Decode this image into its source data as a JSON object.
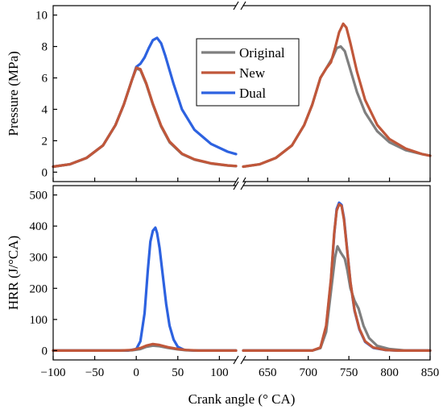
{
  "chart_data": {
    "type": "line",
    "xlabel": "Crank angle (° CA)",
    "x_break": {
      "left_range": [
        -100,
        120
      ],
      "right_range": [
        620,
        850
      ]
    },
    "x_ticks": [
      -100,
      -50,
      0,
      50,
      100,
      650,
      700,
      750,
      800,
      850
    ],
    "series_styles": [
      {
        "name": "Original",
        "color": "#7f7f7f"
      },
      {
        "name": "New",
        "color": "#c0573a"
      },
      {
        "name": "Dual",
        "color": "#2d62e0"
      }
    ],
    "panels": [
      {
        "ylabel": "Pressure (MPa)",
        "ylim": [
          -0.6,
          10.6
        ],
        "y_ticks": [
          0,
          2,
          4,
          6,
          8,
          10
        ],
        "legend": {
          "position": "top-center",
          "entries": [
            "Original",
            "New",
            "Dual"
          ]
        },
        "left": {
          "Original": [
            [
              -100,
              0.35
            ],
            [
              -80,
              0.5
            ],
            [
              -60,
              0.9
            ],
            [
              -40,
              1.7
            ],
            [
              -25,
              3.0
            ],
            [
              -15,
              4.3
            ],
            [
              -5,
              5.9
            ],
            [
              0,
              6.6
            ],
            [
              5,
              6.5
            ],
            [
              12,
              5.6
            ],
            [
              20,
              4.3
            ],
            [
              30,
              2.9
            ],
            [
              40,
              1.9
            ],
            [
              55,
              1.15
            ],
            [
              70,
              0.8
            ],
            [
              90,
              0.55
            ],
            [
              110,
              0.42
            ],
            [
              120,
              0.38
            ]
          ],
          "New": [
            [
              -100,
              0.35
            ],
            [
              -80,
              0.5
            ],
            [
              -60,
              0.9
            ],
            [
              -40,
              1.7
            ],
            [
              -25,
              3.0
            ],
            [
              -15,
              4.3
            ],
            [
              -5,
              5.9
            ],
            [
              0,
              6.65
            ],
            [
              5,
              6.55
            ],
            [
              12,
              5.65
            ],
            [
              20,
              4.35
            ],
            [
              30,
              2.95
            ],
            [
              40,
              1.95
            ],
            [
              55,
              1.18
            ],
            [
              70,
              0.82
            ],
            [
              90,
              0.56
            ],
            [
              110,
              0.43
            ],
            [
              120,
              0.39
            ]
          ],
          "Dual": [
            [
              -100,
              0.35
            ],
            [
              -80,
              0.5
            ],
            [
              -60,
              0.9
            ],
            [
              -40,
              1.7
            ],
            [
              -25,
              3.0
            ],
            [
              -15,
              4.3
            ],
            [
              -5,
              5.9
            ],
            [
              0,
              6.7
            ],
            [
              5,
              6.9
            ],
            [
              10,
              7.3
            ],
            [
              15,
              7.9
            ],
            [
              20,
              8.4
            ],
            [
              25,
              8.55
            ],
            [
              30,
              8.2
            ],
            [
              35,
              7.4
            ],
            [
              45,
              5.6
            ],
            [
              55,
              4.0
            ],
            [
              70,
              2.7
            ],
            [
              90,
              1.8
            ],
            [
              110,
              1.3
            ],
            [
              120,
              1.15
            ]
          ]
        },
        "right": {
          "Original": [
            [
              620,
              0.35
            ],
            [
              640,
              0.5
            ],
            [
              660,
              0.9
            ],
            [
              680,
              1.7
            ],
            [
              695,
              3.0
            ],
            [
              705,
              4.3
            ],
            [
              715,
              6.0
            ],
            [
              722,
              6.6
            ],
            [
              730,
              7.3
            ],
            [
              735,
              7.9
            ],
            [
              740,
              8.0
            ],
            [
              745,
              7.7
            ],
            [
              752,
              6.5
            ],
            [
              760,
              5.1
            ],
            [
              770,
              3.8
            ],
            [
              785,
              2.6
            ],
            [
              800,
              1.9
            ],
            [
              820,
              1.4
            ],
            [
              840,
              1.15
            ],
            [
              850,
              1.05
            ]
          ],
          "New": [
            [
              620,
              0.35
            ],
            [
              640,
              0.5
            ],
            [
              660,
              0.9
            ],
            [
              680,
              1.7
            ],
            [
              695,
              3.0
            ],
            [
              705,
              4.3
            ],
            [
              715,
              6.0
            ],
            [
              722,
              6.6
            ],
            [
              728,
              7.0
            ],
            [
              733,
              7.9
            ],
            [
              738,
              8.9
            ],
            [
              743,
              9.45
            ],
            [
              747,
              9.2
            ],
            [
              752,
              8.2
            ],
            [
              760,
              6.4
            ],
            [
              770,
              4.6
            ],
            [
              785,
              3.0
            ],
            [
              800,
              2.1
            ],
            [
              820,
              1.5
            ],
            [
              840,
              1.15
            ],
            [
              850,
              1.05
            ]
          ]
        }
      },
      {
        "ylabel": "HRR (J/°CA)",
        "ylim": [
          -30,
          530
        ],
        "y_ticks": [
          0,
          100,
          200,
          300,
          400,
          500
        ],
        "left": {
          "Original": [
            [
              -100,
              0
            ],
            [
              -20,
              0
            ],
            [
              -5,
              1
            ],
            [
              5,
              5
            ],
            [
              12,
              12
            ],
            [
              20,
              16
            ],
            [
              28,
              14
            ],
            [
              38,
              9
            ],
            [
              50,
              4
            ],
            [
              60,
              1
            ],
            [
              75,
              0
            ],
            [
              120,
              0
            ]
          ],
          "New": [
            [
              -100,
              0
            ],
            [
              -20,
              0
            ],
            [
              -5,
              2
            ],
            [
              5,
              8
            ],
            [
              12,
              16
            ],
            [
              20,
              21
            ],
            [
              28,
              18
            ],
            [
              38,
              11
            ],
            [
              50,
              5
            ],
            [
              60,
              2
            ],
            [
              75,
              0
            ],
            [
              120,
              0
            ]
          ],
          "Dual": [
            [
              -100,
              0
            ],
            [
              -10,
              0
            ],
            [
              0,
              5
            ],
            [
              5,
              30
            ],
            [
              10,
              120
            ],
            [
              14,
              260
            ],
            [
              17,
              350
            ],
            [
              20,
              385
            ],
            [
              23,
              395
            ],
            [
              25,
              378
            ],
            [
              28,
              330
            ],
            [
              32,
              240
            ],
            [
              36,
              150
            ],
            [
              40,
              80
            ],
            [
              45,
              35
            ],
            [
              50,
              12
            ],
            [
              58,
              2
            ],
            [
              70,
              0
            ],
            [
              120,
              0
            ]
          ]
        },
        "right": {
          "Original": [
            [
              620,
              0
            ],
            [
              705,
              0
            ],
            [
              715,
              8
            ],
            [
              722,
              60
            ],
            [
              728,
              190
            ],
            [
              733,
              300
            ],
            [
              736,
              335
            ],
            [
              740,
              315
            ],
            [
              745,
              295
            ],
            [
              748,
              260
            ],
            [
              752,
              200
            ],
            [
              757,
              160
            ],
            [
              762,
              135
            ],
            [
              768,
              80
            ],
            [
              775,
              40
            ],
            [
              785,
              15
            ],
            [
              800,
              5
            ],
            [
              820,
              0
            ],
            [
              850,
              0
            ]
          ],
          "New": [
            [
              620,
              0
            ],
            [
              705,
              0
            ],
            [
              715,
              10
            ],
            [
              722,
              80
            ],
            [
              728,
              230
            ],
            [
              732,
              380
            ],
            [
              735,
              450
            ],
            [
              738,
              470
            ],
            [
              741,
              465
            ],
            [
              744,
              420
            ],
            [
              748,
              320
            ],
            [
              752,
              220
            ],
            [
              757,
              130
            ],
            [
              763,
              70
            ],
            [
              770,
              30
            ],
            [
              780,
              10
            ],
            [
              795,
              2
            ],
            [
              810,
              0
            ],
            [
              850,
              0
            ]
          ],
          "Dual": [
            [
              620,
              0
            ],
            [
              705,
              0
            ],
            [
              715,
              9
            ],
            [
              722,
              75
            ],
            [
              728,
              225
            ],
            [
              732,
              375
            ],
            [
              735,
              455
            ],
            [
              738,
              475
            ],
            [
              741,
              468
            ],
            [
              744,
              425
            ],
            [
              748,
              322
            ],
            [
              752,
              218
            ],
            [
              757,
              128
            ],
            [
              763,
              68
            ],
            [
              770,
              28
            ],
            [
              780,
              9
            ],
            [
              795,
              2
            ],
            [
              810,
              0
            ],
            [
              850,
              0
            ]
          ]
        }
      }
    ]
  }
}
